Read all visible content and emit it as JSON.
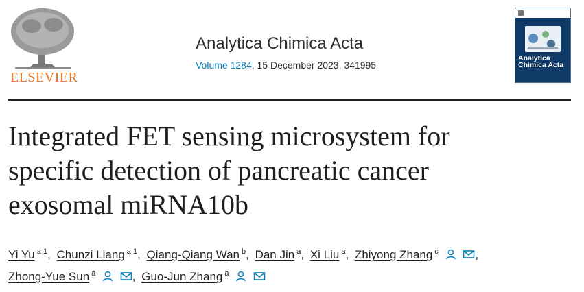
{
  "header": {
    "publisher": "ELSEVIER",
    "journal_title": "Analytica Chimica Acta",
    "volume_link": "Volume 1284",
    "issue_rest": ", 15 December 2023, 341995",
    "cover_title": "Analytica Chimica Acta"
  },
  "article": {
    "title_line1": "Integrated FET sensing microsystem for",
    "title_line2": "specific detection of pancreatic cancer",
    "title_line3": "exosomal miRNA10b"
  },
  "authors": [
    {
      "name": "Yi Yu",
      "aff": "a 1"
    },
    {
      "name": "Chunzi Liang",
      "aff": "a 1"
    },
    {
      "name": "Qiang-Qiang Wan",
      "aff": "b"
    },
    {
      "name": "Dan Jin",
      "aff": "a"
    },
    {
      "name": "Xi Liu",
      "aff": "a"
    },
    {
      "name": "Zhiyong Zhang",
      "aff": "c"
    },
    {
      "name": "Zhong-Yue Sun",
      "aff": "a"
    },
    {
      "name": "Guo-Jun Zhang",
      "aff": "a"
    }
  ],
  "separator": ",",
  "icons": {
    "person": "person-icon",
    "email": "envelope-icon"
  },
  "colors": {
    "publisher_orange": "#e9711c",
    "link_blue": "#0c7dbb",
    "cover_navy": "#0f3a67"
  }
}
